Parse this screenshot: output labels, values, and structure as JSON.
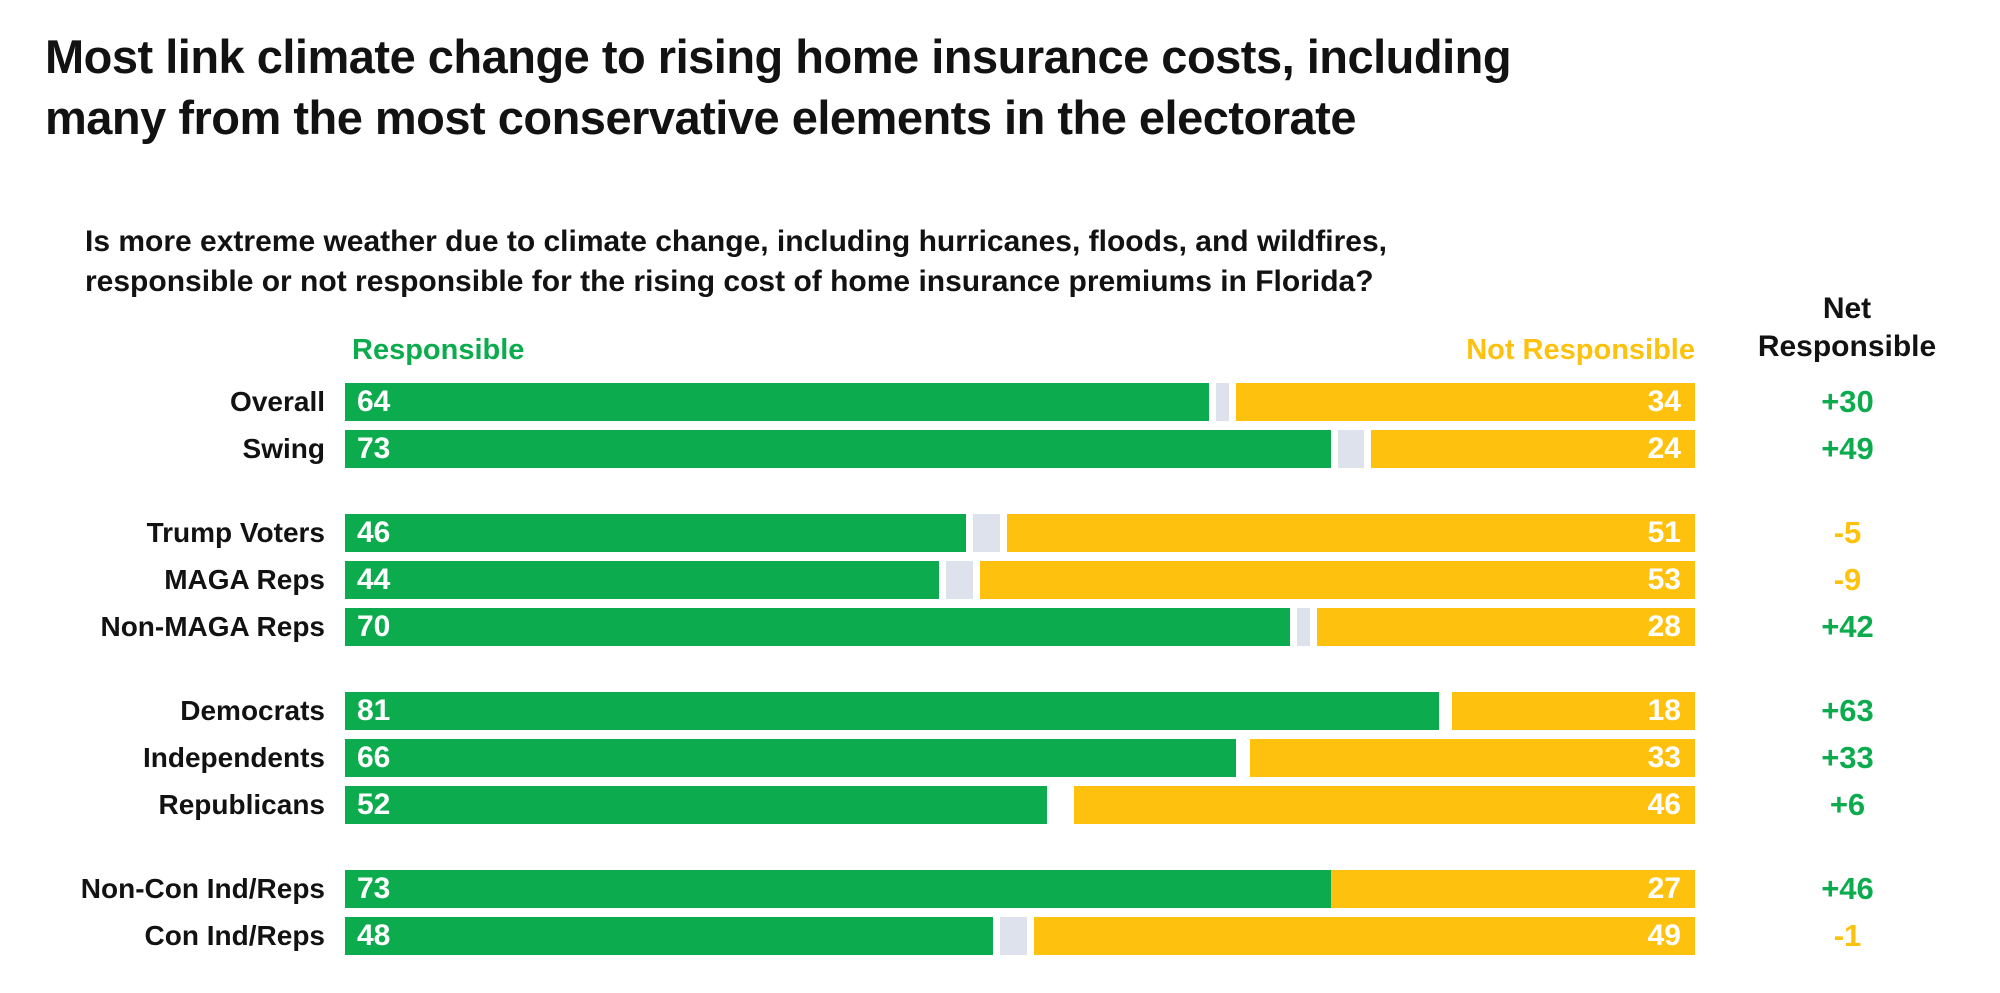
{
  "title": {
    "line1": "Most link climate change to rising home insurance costs, including",
    "line2": "many from the most conservative elements in the electorate"
  },
  "question": {
    "line1": "Is more extreme weather due to climate change, including hurricanes, floods, and wildfires,",
    "line2": "responsible or not responsible for the rising cost of home insurance premiums in Florida?"
  },
  "legend": {
    "responsible": "Responsible",
    "not_responsible": "Not Responsible"
  },
  "net_header": {
    "line1": "Net",
    "line2": "Responsible"
  },
  "colors": {
    "responsible_green": "#0cac4e",
    "not_responsible_yellow": "#fec20e",
    "spacer_gray": "#dde2ec",
    "net_positive": "#0cac4e",
    "net_negative": "#fec20e",
    "text": "#121212",
    "bar_value_text": "#ffffff"
  },
  "chart_data": {
    "type": "bar",
    "orientation": "horizontal",
    "units": "percent",
    "axis_range": [
      0,
      100
    ],
    "grid": false,
    "legend_position": "above-bars",
    "series": [
      {
        "name": "Responsible",
        "color": "#0cac4e"
      },
      {
        "name": "Not Responsible",
        "color": "#fec20e"
      }
    ],
    "groups": [
      {
        "rows": [
          {
            "label": "Overall",
            "responsible": 64,
            "not_responsible": 34,
            "unlabeled": 2,
            "net": "+30",
            "net_sign": "positive"
          },
          {
            "label": "Swing",
            "responsible": 73,
            "not_responsible": 24,
            "unlabeled": 3,
            "net": "+49",
            "net_sign": "positive"
          }
        ]
      },
      {
        "rows": [
          {
            "label": "Trump Voters",
            "responsible": 46,
            "not_responsible": 51,
            "unlabeled": 3,
            "net": "-5",
            "net_sign": "negative"
          },
          {
            "label": "MAGA Reps",
            "responsible": 44,
            "not_responsible": 53,
            "unlabeled": 3,
            "net": "-9",
            "net_sign": "negative"
          },
          {
            "label": "Non-MAGA Reps",
            "responsible": 70,
            "not_responsible": 28,
            "unlabeled": 2,
            "net": "+42",
            "net_sign": "positive"
          }
        ]
      },
      {
        "rows": [
          {
            "label": "Democrats",
            "responsible": 81,
            "not_responsible": 18,
            "unlabeled": 0,
            "net": "+63",
            "net_sign": "positive"
          },
          {
            "label": "Independents",
            "responsible": 66,
            "not_responsible": 33,
            "unlabeled": 0,
            "net": "+33",
            "net_sign": "positive"
          },
          {
            "label": "Republicans",
            "responsible": 52,
            "not_responsible": 46,
            "unlabeled": 0,
            "net": "+6",
            "net_sign": "positive"
          }
        ]
      },
      {
        "rows": [
          {
            "label": "Non-Con Ind/Reps",
            "responsible": 73,
            "not_responsible": 27,
            "unlabeled": 0,
            "net": "+46",
            "net_sign": "positive"
          },
          {
            "label": "Con Ind/Reps",
            "responsible": 48,
            "not_responsible": 49,
            "unlabeled": 3,
            "net": "-1",
            "net_sign": "negative"
          }
        ]
      }
    ]
  }
}
